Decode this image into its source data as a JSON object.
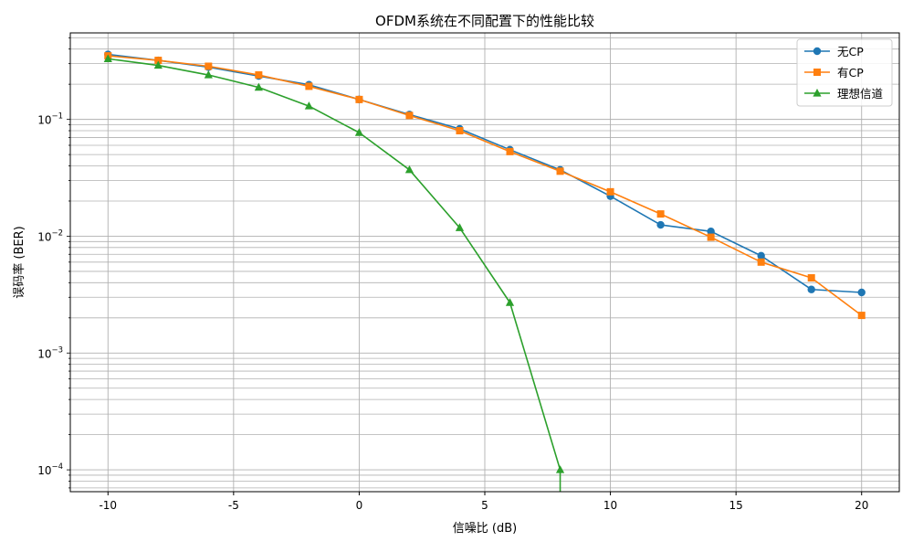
{
  "chart_data": {
    "type": "line",
    "title": "OFDM系统在不同配置下的性能比较",
    "xlabel": "信噪比 (dB)",
    "ylabel": "误码率 (BER)",
    "yscale": "log",
    "xlim": [
      -11.5,
      21.5
    ],
    "ylim": [
      6.5e-05,
      0.55
    ],
    "grid": true,
    "grid_minor": true,
    "legend_position": "top-right",
    "x_ticks": [
      -10,
      -5,
      0,
      5,
      10,
      15,
      20
    ],
    "x_tick_labels": [
      "-10",
      "-5",
      "0",
      "5",
      "10",
      "15",
      "20"
    ],
    "y_ticks": [
      0.1,
      0.01,
      0.001,
      0.0001
    ],
    "y_tick_labels": [
      {
        "base": "10",
        "exp": "−1"
      },
      {
        "base": "10",
        "exp": "−2"
      },
      {
        "base": "10",
        "exp": "−3"
      },
      {
        "base": "10",
        "exp": "−4"
      }
    ],
    "x": [
      -10,
      -8,
      -6,
      -4,
      -2,
      0,
      2,
      4,
      6,
      8,
      10,
      12,
      14,
      16,
      18,
      20
    ],
    "series": [
      {
        "name": "无CP",
        "color": "#1f77b4",
        "marker": "circle",
        "values": [
          0.36,
          0.32,
          0.28,
          0.235,
          0.198,
          0.148,
          0.11,
          0.083,
          0.055,
          0.037,
          0.022,
          0.0125,
          0.011,
          0.0068,
          0.0035,
          0.0033
        ]
      },
      {
        "name": "有CP",
        "color": "#ff7f0e",
        "marker": "square",
        "values": [
          0.35,
          0.32,
          0.285,
          0.24,
          0.192,
          0.148,
          0.108,
          0.08,
          0.053,
          0.036,
          0.024,
          0.0155,
          0.0098,
          0.006,
          0.0044,
          0.0021
        ]
      },
      {
        "name": "理想信道",
        "color": "#2ca02c",
        "marker": "triangle",
        "values": [
          0.33,
          0.29,
          0.24,
          0.188,
          0.13,
          0.077,
          0.037,
          0.0118,
          0.0027,
          0.0001,
          null,
          null,
          null,
          null,
          null,
          null
        ]
      }
    ]
  }
}
